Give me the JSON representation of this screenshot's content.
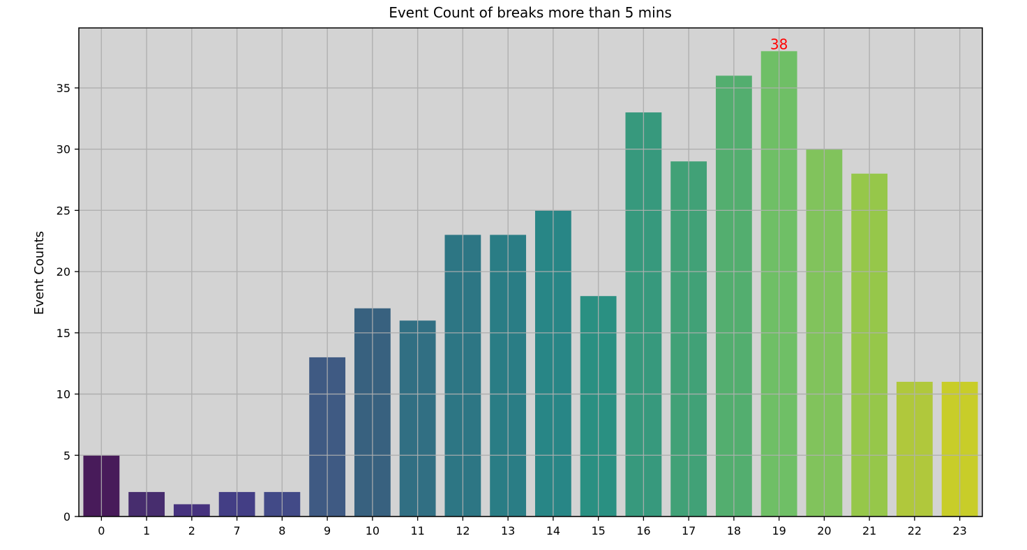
{
  "chart_data": {
    "type": "bar",
    "title": "Event Count of breaks more than 5 mins",
    "xlabel": "",
    "ylabel": "Event Counts",
    "categories": [
      "0",
      "1",
      "2",
      "7",
      "8",
      "9",
      "10",
      "11",
      "12",
      "13",
      "14",
      "15",
      "16",
      "17",
      "18",
      "19",
      "20",
      "21",
      "22",
      "23"
    ],
    "values": [
      5,
      2,
      1,
      2,
      2,
      13,
      17,
      16,
      23,
      23,
      25,
      18,
      33,
      29,
      36,
      38,
      30,
      28,
      11,
      11
    ],
    "colors": [
      "#481B5A",
      "#472D6E",
      "#46327E",
      "#433E85",
      "#424A87",
      "#3F5A83",
      "#38617F",
      "#316F83",
      "#2D7684",
      "#2A7D85",
      "#288686",
      "#2A9082",
      "#37997D",
      "#41A177",
      "#53AE6F",
      "#6FBF66",
      "#81C35C",
      "#96C74A",
      "#B0C83C",
      "#C8CD29"
    ],
    "ylim": [
      0,
      39.9
    ],
    "yticks": [
      0,
      5,
      10,
      15,
      20,
      25,
      30,
      35
    ],
    "grid": true,
    "annotations": [
      {
        "category": "19",
        "value": 38,
        "text": "38",
        "color": "#ff0000"
      }
    ],
    "plot_background": "#d3d3d3",
    "grid_color": "#b0b0b0"
  }
}
